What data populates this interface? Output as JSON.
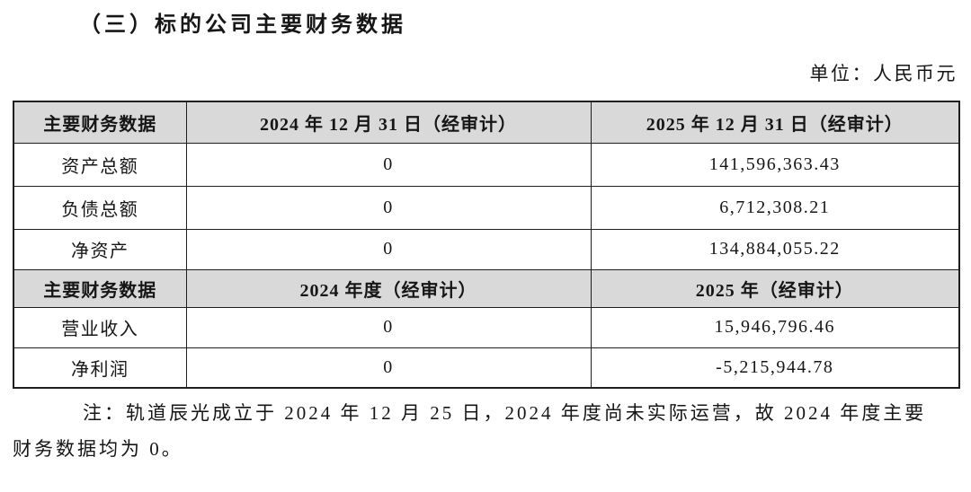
{
  "page": {
    "title": "（三）标的公司主要财务数据",
    "unit_label": "单位：人民币元"
  },
  "table": {
    "sections": [
      {
        "header": {
          "metric": "主要财务数据",
          "col2024": "2024 年 12 月 31 日（经审计）",
          "col2025": "2025 年 12 月 31 日（经审计）"
        },
        "rows": [
          {
            "label": "资产总额",
            "v2024": "0",
            "v2025": "141,596,363.43"
          },
          {
            "label": "负债总额",
            "v2024": "0",
            "v2025": "6,712,308.21"
          },
          {
            "label": "净资产",
            "v2024": "0",
            "v2025": "134,884,055.22"
          }
        ]
      },
      {
        "header": {
          "metric": "主要财务数据",
          "col2024": "2024 年度（经审计）",
          "col2025": "2025 年（经审计）"
        },
        "rows": [
          {
            "label": "营业收入",
            "v2024": "0",
            "v2025": "15,946,796.46"
          },
          {
            "label": "净利润",
            "v2024": "0",
            "v2025": "-5,215,944.78"
          }
        ]
      }
    ]
  },
  "note": {
    "line1": "注：轨道辰光成立于 2024 年 12 月 25 日，2024 年度尚未实际运营，故 2024 年度主要",
    "line2": "财务数据均为 0。"
  },
  "colors": {
    "header_bg": "#d9d9d9",
    "border": "#1f1f1f",
    "text": "#161616",
    "background": "#ffffff"
  }
}
